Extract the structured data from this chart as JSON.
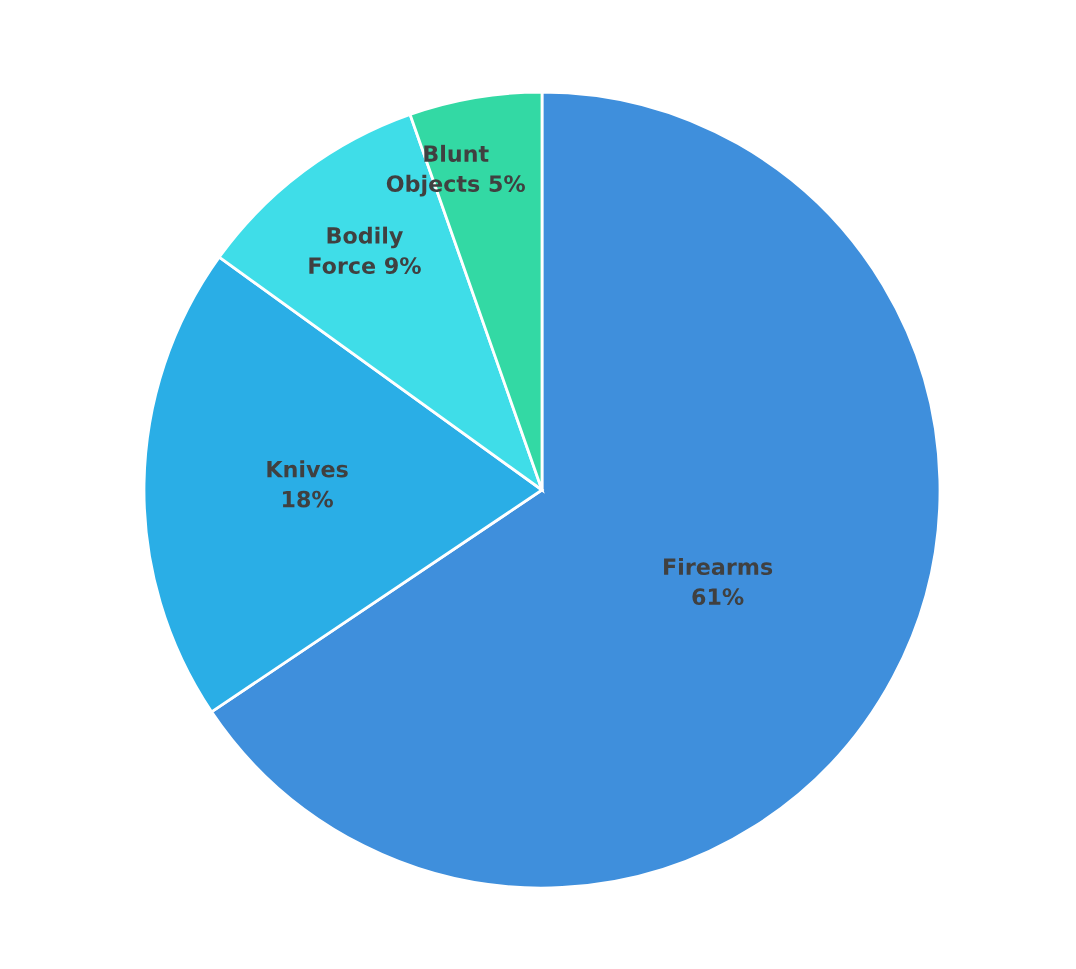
{
  "chart_data": {
    "type": "pie",
    "categories": [
      "Firearms",
      "Knives",
      "Bodily Force",
      "Blunt Objects"
    ],
    "values": [
      61,
      18,
      9,
      5
    ],
    "value_labels": [
      "61%",
      "18%",
      "9%",
      "5%"
    ],
    "colors": [
      "#3f8fdc",
      "#2aaee6",
      "#3fdde8",
      "#33d9a4"
    ],
    "legend": false
  }
}
